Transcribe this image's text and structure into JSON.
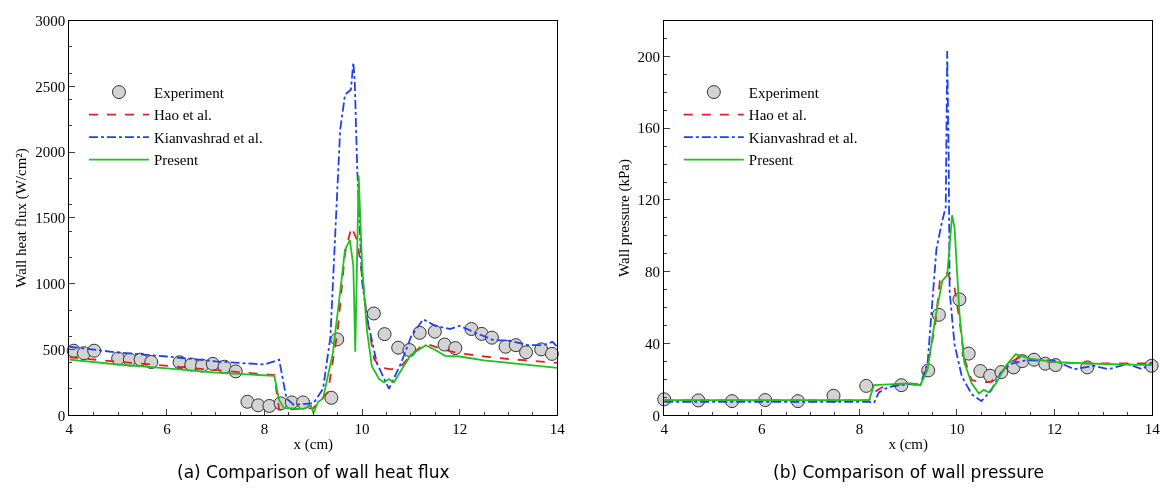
{
  "chart_data": [
    {
      "type": "line",
      "title": "(a) Comparison of wall heat flux",
      "xlabel": "x (cm)",
      "ylabel": "Wall heat flux (W/cm²)",
      "xlim": [
        4,
        14
      ],
      "xticks": [
        4,
        6,
        8,
        10,
        12,
        14
      ],
      "ylim": [
        0,
        3000
      ],
      "yticks": [
        0,
        500,
        1000,
        1500,
        2000,
        2500,
        3000
      ],
      "legend": "top left",
      "series": [
        {
          "name": "Experiment",
          "type": "scatter",
          "marker": "circle",
          "color": "#d3d3d3",
          "x": [
            4.09,
            4.3,
            4.51,
            5.0,
            5.24,
            5.46,
            5.68,
            6.26,
            6.5,
            6.72,
            6.94,
            7.18,
            7.41,
            7.65,
            7.87,
            8.1,
            8.33,
            8.56,
            8.79,
            9.37,
            9.49,
            10.24,
            10.46,
            10.74,
            10.97,
            11.18,
            11.49,
            11.69,
            11.91,
            12.24,
            12.45,
            12.66,
            12.94,
            13.15,
            13.36,
            13.67,
            13.89
          ],
          "values": [
            491,
            472,
            491,
            432,
            423,
            423,
            405,
            403,
            386,
            378,
            391,
            369,
            334,
            103,
            76,
            71,
            91,
            98,
            98,
            133,
            577,
            774,
            617,
            514,
            496,
            627,
            636,
            538,
            511,
            656,
            619,
            590,
            521,
            533,
            479,
            501,
            467
          ]
        },
        {
          "name": "Hao et al.",
          "line_style": "dashed",
          "color": "#e02020",
          "x": [
            4,
            8.2,
            8.3,
            9.0,
            9.3,
            9.5,
            9.65,
            9.78,
            9.9,
            10.0,
            10.1,
            10.25,
            10.4,
            10.6,
            10.8,
            11.0,
            11.2,
            11.4,
            11.7,
            12.0,
            12.5,
            13,
            14
          ],
          "values": [
            440,
            305,
            42,
            54,
            177,
            644,
            1233,
            1430,
            1332,
            1061,
            742,
            423,
            361,
            349,
            373,
            459,
            521,
            533,
            496,
            472,
            447,
            428,
            398
          ]
        },
        {
          "name": "Kianvashrad et al.",
          "line_style": "dashdot",
          "color": "#2040f0",
          "x": [
            4,
            5,
            6,
            7,
            8.0,
            8.3,
            8.45,
            8.6,
            9.0,
            9.2,
            9.35,
            9.45,
            9.55,
            9.65,
            9.77,
            9.82,
            9.85,
            9.9,
            10.0,
            10.1,
            10.3,
            10.55,
            10.8,
            11.0,
            11.25,
            11.5,
            11.8,
            12.0,
            12.3,
            12.7,
            13,
            13.4,
            13.7,
            13.9,
            14
          ],
          "values": [
            521,
            477,
            447,
            410,
            386,
            423,
            128,
            79,
            91,
            201,
            595,
            1381,
            2167,
            2437,
            2474,
            2683,
            2535,
            1872,
            1012,
            742,
            398,
            201,
            398,
            595,
            730,
            680,
            656,
            680,
            631,
            570,
            570,
            533,
            533,
            558,
            521
          ]
        },
        {
          "name": "Present",
          "line_style": "solid",
          "color": "#20c020",
          "x": [
            4,
            5,
            6,
            7,
            8.2,
            8.3,
            8.4,
            8.8,
            8.95,
            9.0,
            9.1,
            9.2,
            9.4,
            9.55,
            9.65,
            9.75,
            9.82,
            9.86,
            9.93,
            10.0,
            10.1,
            10.2,
            10.35,
            10.45,
            10.55,
            10.65,
            10.85,
            11.0,
            11.3,
            11.5,
            11.7,
            12.0,
            12.5,
            13,
            14
          ],
          "values": [
            423,
            386,
            356,
            324,
            300,
            115,
            54,
            49,
            74,
            17,
            103,
            128,
            472,
            939,
            1258,
            1332,
            1135,
            484,
            1823,
            1135,
            644,
            373,
            275,
            250,
            275,
            250,
            373,
            459,
            533,
            496,
            452,
            447,
            418,
            398,
            361
          ]
        }
      ]
    },
    {
      "type": "line",
      "title": "(b) Comparison of wall pressure",
      "xlabel": "x (cm)",
      "ylabel": "Wall pressure (kPa)",
      "xlim": [
        4,
        14
      ],
      "xticks": [
        4,
        6,
        8,
        10,
        12,
        14
      ],
      "ylim": [
        0,
        220
      ],
      "yticks": [
        0,
        40,
        80,
        120,
        160,
        200
      ],
      "legend": "top left",
      "series": [
        {
          "name": "Experiment",
          "type": "scatter",
          "marker": "circle",
          "color": "#d3d3d3",
          "x": [
            4.0,
            4.7,
            5.39,
            6.07,
            6.74,
            7.47,
            8.14,
            8.86,
            9.41,
            9.63,
            10.05,
            10.24,
            10.48,
            10.68,
            10.91,
            11.16,
            11.34,
            11.58,
            11.81,
            12.02,
            12.67,
            13.99
          ],
          "values": [
            8.9,
            8.3,
            7.9,
            8.5,
            7.9,
            10.9,
            16.4,
            16.8,
            25,
            56,
            64.6,
            34.4,
            24.7,
            22.1,
            24.1,
            26.7,
            30.2,
            31,
            28.8,
            28,
            26.7,
            27.6
          ]
        },
        {
          "name": "Hao et al.",
          "line_style": "dashed",
          "color": "#e02020",
          "x": [
            4,
            8.2,
            8.3,
            8.5,
            9.0,
            9.25,
            9.4,
            9.55,
            9.65,
            9.8,
            9.95,
            10.05,
            10.15,
            10.3,
            10.5,
            10.7,
            10.9,
            11.1,
            11.3,
            11.6,
            12,
            12.5,
            13,
            14
          ],
          "values": [
            8.3,
            8.3,
            12.8,
            16.2,
            17.8,
            17.2,
            27.6,
            49.4,
            75,
            79.4,
            71,
            53.3,
            31.6,
            19.7,
            18.2,
            18.8,
            23.7,
            29.6,
            32.6,
            30.6,
            29.6,
            29,
            29,
            29
          ]
        },
        {
          "name": "Kianvashrad et al.",
          "line_style": "dashdot",
          "color": "#2040f0",
          "x": [
            4,
            8.2,
            8.3,
            8.4,
            8.6,
            9.0,
            9.25,
            9.4,
            9.5,
            9.58,
            9.7,
            9.77,
            9.8,
            9.83,
            9.85,
            9.95,
            10.1,
            10.3,
            10.5,
            10.7,
            10.9,
            11.1,
            11.4,
            11.7,
            12.0,
            12.4,
            12.8,
            13.1,
            13.5,
            13.8,
            14
          ],
          "values": [
            7.5,
            7.5,
            6.9,
            12.8,
            15.8,
            17.4,
            16.8,
            29.6,
            65,
            92.8,
            108.6,
            116,
            203,
            144,
            69,
            39.5,
            21.7,
            11.8,
            7.9,
            13.8,
            23.7,
            28.6,
            30.6,
            30.6,
            30.6,
            25.7,
            27.6,
            25.7,
            28.6,
            25.7,
            29.6
          ]
        },
        {
          "name": "Present",
          "line_style": "solid",
          "color": "#20c020",
          "x": [
            4,
            8.2,
            8.3,
            9.0,
            9.25,
            9.4,
            9.55,
            9.7,
            9.8,
            9.9,
            9.95,
            10.05,
            10.15,
            10.3,
            10.45,
            10.55,
            10.65,
            10.8,
            11.0,
            11.2,
            11.5,
            12,
            13,
            14
          ],
          "values": [
            8.5,
            8.5,
            16.8,
            17.8,
            16.8,
            25.7,
            53.3,
            75,
            78,
            111.5,
            104.6,
            57.3,
            29.6,
            17.8,
            12.2,
            14.2,
            12.8,
            17.8,
            27.6,
            34,
            31.6,
            29.6,
            28.6,
            28
          ]
        }
      ]
    }
  ]
}
